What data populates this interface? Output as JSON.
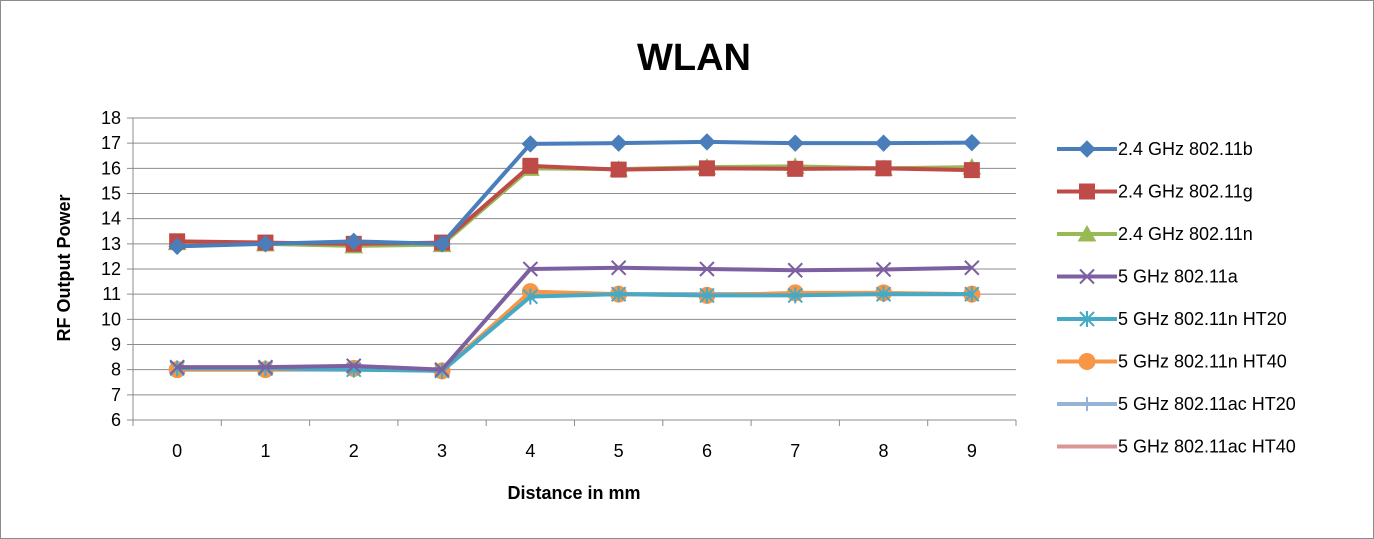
{
  "chart_data": {
    "type": "line",
    "title": "WLAN",
    "xlabel": "Distance in mm",
    "ylabel": "RF Output Power",
    "categories": [
      "0",
      "1",
      "2",
      "3",
      "4",
      "5",
      "6",
      "7",
      "8",
      "9"
    ],
    "ylim": [
      6,
      18
    ],
    "yticks": [
      6,
      7,
      8,
      9,
      10,
      11,
      12,
      13,
      14,
      15,
      16,
      17,
      18
    ],
    "grid": true,
    "legend_position": "right",
    "series": [
      {
        "name": "2.4 GHz 802.11b",
        "color": "#4a7ebb",
        "marker": "diamond",
        "values": [
          12.9,
          13.0,
          13.1,
          13.0,
          16.97,
          17.0,
          17.05,
          17.0,
          17.0,
          17.02
        ]
      },
      {
        "name": "2.4 GHz 802.11g",
        "color": "#be4b48",
        "marker": "square",
        "values": [
          13.1,
          13.05,
          13.0,
          13.05,
          16.1,
          15.95,
          16.0,
          15.98,
          16.0,
          15.93
        ]
      },
      {
        "name": "2.4 GHz 802.11n",
        "color": "#98b954",
        "marker": "triangle",
        "values": [
          13.05,
          13.0,
          12.92,
          12.97,
          16.0,
          15.97,
          16.05,
          16.08,
          16.0,
          16.05
        ]
      },
      {
        "name": "5 GHz 802.11a",
        "color": "#7d60a0",
        "marker": "x",
        "values": [
          8.1,
          8.1,
          8.15,
          8.0,
          12.0,
          12.05,
          12.0,
          11.95,
          11.98,
          12.05
        ]
      },
      {
        "name": "5 GHz 802.11n HT20",
        "color": "#46aac5",
        "marker": "asterisk",
        "values": [
          8.05,
          8.05,
          8.0,
          7.95,
          10.9,
          11.0,
          10.95,
          10.95,
          11.0,
          11.0
        ]
      },
      {
        "name": "5 GHz 802.11n HT40",
        "color": "#f79646",
        "marker": "circle",
        "values": [
          8.0,
          8.0,
          8.05,
          7.95,
          11.1,
          11.0,
          10.95,
          11.05,
          11.05,
          11.0
        ]
      },
      {
        "name": "5 GHz 802.11ac HT20",
        "color": "#94b3d6",
        "marker": "plus",
        "values": [
          8.0,
          8.0,
          8.0,
          8.0,
          11.0,
          11.0,
          11.0,
          11.0,
          11.0,
          11.0
        ]
      },
      {
        "name": "5 GHz 802.11ac HT40",
        "color": "#d99694",
        "marker": "none",
        "values": [
          8.0,
          8.0,
          8.0,
          8.0,
          11.0,
          11.0,
          11.0,
          11.0,
          11.0,
          11.0
        ]
      }
    ]
  }
}
